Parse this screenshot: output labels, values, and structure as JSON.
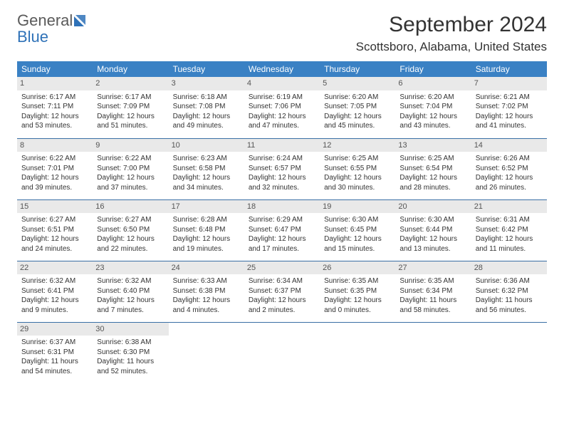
{
  "logo": {
    "text_gray": "General",
    "text_blue": "Blue"
  },
  "title": "September 2024",
  "location": "Scottsboro, Alabama, United States",
  "header_bg": "#3a81c4",
  "weekdays": [
    "Sunday",
    "Monday",
    "Tuesday",
    "Wednesday",
    "Thursday",
    "Friday",
    "Saturday"
  ],
  "days": [
    {
      "n": "1",
      "sr": "6:17 AM",
      "ss": "7:11 PM",
      "dl": "12 hours and 53 minutes."
    },
    {
      "n": "2",
      "sr": "6:17 AM",
      "ss": "7:09 PM",
      "dl": "12 hours and 51 minutes."
    },
    {
      "n": "3",
      "sr": "6:18 AM",
      "ss": "7:08 PM",
      "dl": "12 hours and 49 minutes."
    },
    {
      "n": "4",
      "sr": "6:19 AM",
      "ss": "7:06 PM",
      "dl": "12 hours and 47 minutes."
    },
    {
      "n": "5",
      "sr": "6:20 AM",
      "ss": "7:05 PM",
      "dl": "12 hours and 45 minutes."
    },
    {
      "n": "6",
      "sr": "6:20 AM",
      "ss": "7:04 PM",
      "dl": "12 hours and 43 minutes."
    },
    {
      "n": "7",
      "sr": "6:21 AM",
      "ss": "7:02 PM",
      "dl": "12 hours and 41 minutes."
    },
    {
      "n": "8",
      "sr": "6:22 AM",
      "ss": "7:01 PM",
      "dl": "12 hours and 39 minutes."
    },
    {
      "n": "9",
      "sr": "6:22 AM",
      "ss": "7:00 PM",
      "dl": "12 hours and 37 minutes."
    },
    {
      "n": "10",
      "sr": "6:23 AM",
      "ss": "6:58 PM",
      "dl": "12 hours and 34 minutes."
    },
    {
      "n": "11",
      "sr": "6:24 AM",
      "ss": "6:57 PM",
      "dl": "12 hours and 32 minutes."
    },
    {
      "n": "12",
      "sr": "6:25 AM",
      "ss": "6:55 PM",
      "dl": "12 hours and 30 minutes."
    },
    {
      "n": "13",
      "sr": "6:25 AM",
      "ss": "6:54 PM",
      "dl": "12 hours and 28 minutes."
    },
    {
      "n": "14",
      "sr": "6:26 AM",
      "ss": "6:52 PM",
      "dl": "12 hours and 26 minutes."
    },
    {
      "n": "15",
      "sr": "6:27 AM",
      "ss": "6:51 PM",
      "dl": "12 hours and 24 minutes."
    },
    {
      "n": "16",
      "sr": "6:27 AM",
      "ss": "6:50 PM",
      "dl": "12 hours and 22 minutes."
    },
    {
      "n": "17",
      "sr": "6:28 AM",
      "ss": "6:48 PM",
      "dl": "12 hours and 19 minutes."
    },
    {
      "n": "18",
      "sr": "6:29 AM",
      "ss": "6:47 PM",
      "dl": "12 hours and 17 minutes."
    },
    {
      "n": "19",
      "sr": "6:30 AM",
      "ss": "6:45 PM",
      "dl": "12 hours and 15 minutes."
    },
    {
      "n": "20",
      "sr": "6:30 AM",
      "ss": "6:44 PM",
      "dl": "12 hours and 13 minutes."
    },
    {
      "n": "21",
      "sr": "6:31 AM",
      "ss": "6:42 PM",
      "dl": "12 hours and 11 minutes."
    },
    {
      "n": "22",
      "sr": "6:32 AM",
      "ss": "6:41 PM",
      "dl": "12 hours and 9 minutes."
    },
    {
      "n": "23",
      "sr": "6:32 AM",
      "ss": "6:40 PM",
      "dl": "12 hours and 7 minutes."
    },
    {
      "n": "24",
      "sr": "6:33 AM",
      "ss": "6:38 PM",
      "dl": "12 hours and 4 minutes."
    },
    {
      "n": "25",
      "sr": "6:34 AM",
      "ss": "6:37 PM",
      "dl": "12 hours and 2 minutes."
    },
    {
      "n": "26",
      "sr": "6:35 AM",
      "ss": "6:35 PM",
      "dl": "12 hours and 0 minutes."
    },
    {
      "n": "27",
      "sr": "6:35 AM",
      "ss": "6:34 PM",
      "dl": "11 hours and 58 minutes."
    },
    {
      "n": "28",
      "sr": "6:36 AM",
      "ss": "6:32 PM",
      "dl": "11 hours and 56 minutes."
    },
    {
      "n": "29",
      "sr": "6:37 AM",
      "ss": "6:31 PM",
      "dl": "11 hours and 54 minutes."
    },
    {
      "n": "30",
      "sr": "6:38 AM",
      "ss": "6:30 PM",
      "dl": "11 hours and 52 minutes."
    }
  ],
  "labels": {
    "sunrise": "Sunrise: ",
    "sunset": "Sunset: ",
    "daylight": "Daylight: "
  }
}
